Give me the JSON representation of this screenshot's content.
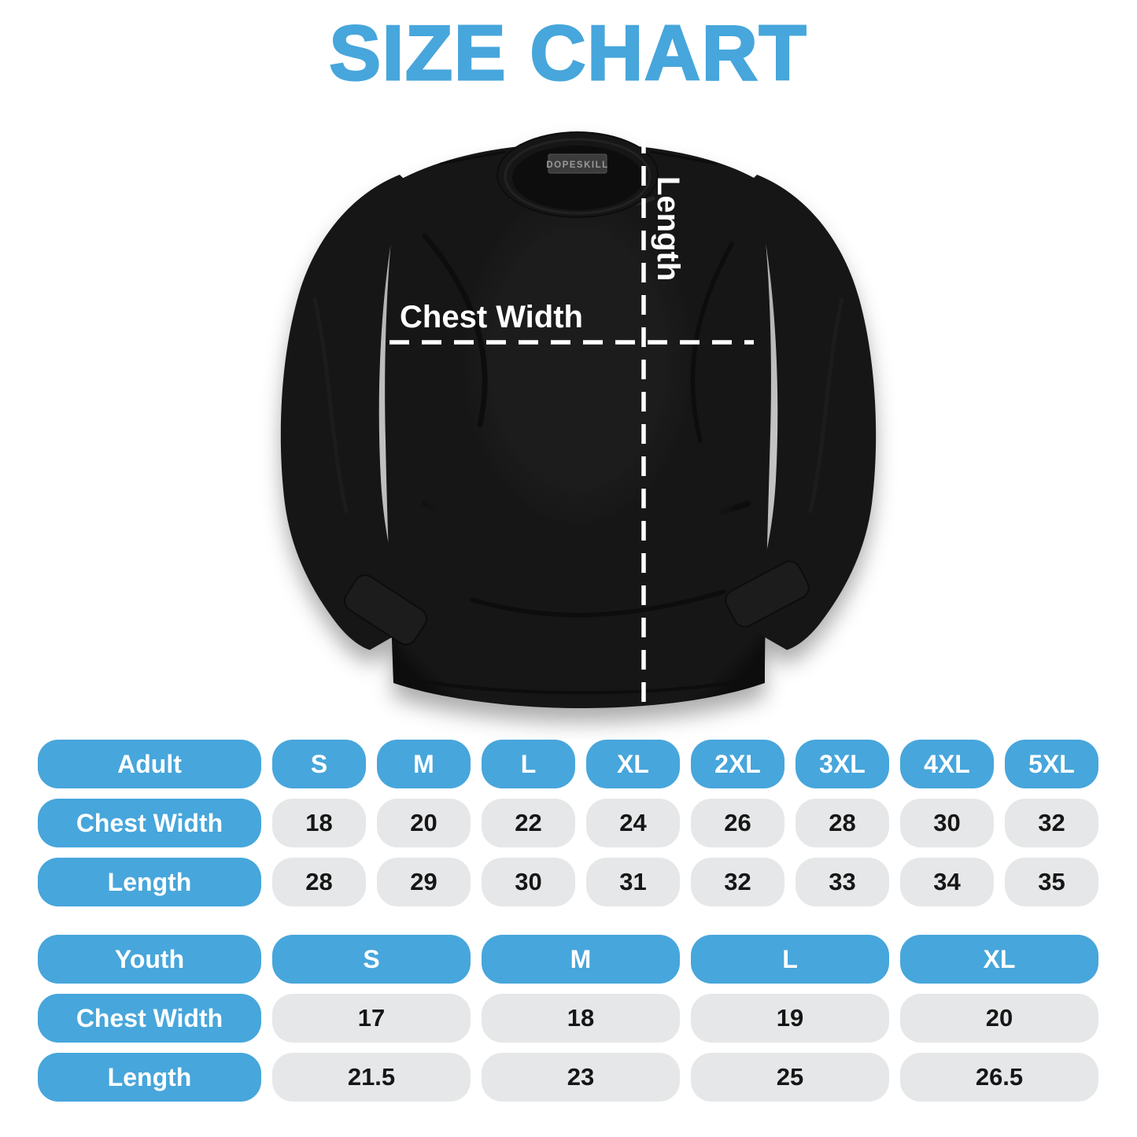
{
  "title": "SIZE CHART",
  "shirt": {
    "brand_tag": "DOPESKILL",
    "chest_width_label": "Chest Width",
    "length_label": "Length"
  },
  "colors": {
    "accent_blue": "#47a6db",
    "pill_gray": "#e6e7e8",
    "text_dark": "#161616",
    "shirt_black": "#171717",
    "measure_line_white": "#ffffff"
  },
  "chart_data": [
    {
      "type": "table",
      "title": "Adult size chart (inches)",
      "columns": [
        "Adult",
        "S",
        "M",
        "L",
        "XL",
        "2XL",
        "3XL",
        "4XL",
        "5XL"
      ],
      "rows": [
        [
          "Chest Width",
          18,
          20,
          22,
          24,
          26,
          28,
          30,
          32
        ],
        [
          "Length",
          28,
          29,
          30,
          31,
          32,
          33,
          34,
          35
        ]
      ]
    },
    {
      "type": "table",
      "title": "Youth size chart (inches)",
      "columns": [
        "Youth",
        "S",
        "M",
        "L",
        "XL"
      ],
      "rows": [
        [
          "Chest Width",
          17,
          18,
          19,
          20
        ],
        [
          "Length",
          21.5,
          23,
          25,
          26.5
        ]
      ]
    }
  ]
}
